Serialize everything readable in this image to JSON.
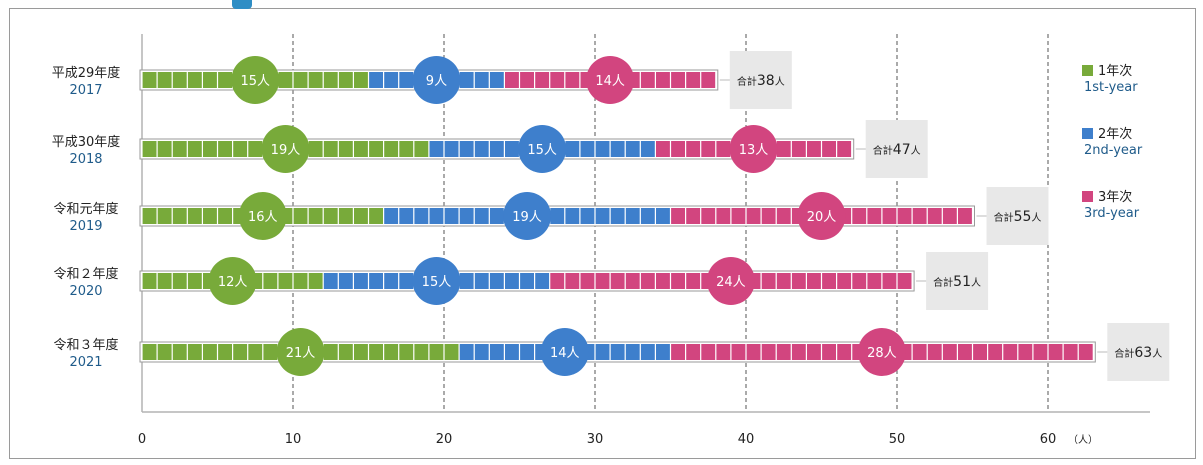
{
  "chart_data": {
    "type": "bar",
    "orientation": "horizontal",
    "stacked": true,
    "categories": [
      {
        "label": "平成29年度",
        "year": "2017"
      },
      {
        "label": "平成30年度",
        "year": "2018"
      },
      {
        "label": "令和元年度",
        "year": "2019"
      },
      {
        "label": "令和２年度",
        "year": "2020"
      },
      {
        "label": "令和３年度",
        "year": "2021"
      }
    ],
    "series": [
      {
        "name": "1年次",
        "name_en": "1st-year",
        "color": "#78aa3a",
        "values": [
          15,
          19,
          16,
          12,
          21
        ]
      },
      {
        "name": "2年次",
        "name_en": "2nd-year",
        "color": "#3e7fcc",
        "values": [
          9,
          15,
          19,
          15,
          14
        ]
      },
      {
        "name": "3年次",
        "name_en": "3rd-year",
        "color": "#d2457f",
        "values": [
          14,
          13,
          20,
          24,
          28
        ]
      }
    ],
    "value_suffix": "人",
    "totals": [
      38,
      47,
      55,
      51,
      63
    ],
    "total_prefix": "合計",
    "x_ticks": [
      0,
      10,
      20,
      30,
      40,
      50,
      60
    ],
    "x_unit": "（人）",
    "xlim": [
      0,
      60
    ],
    "grid": "vertical dashed",
    "legend_position": "right"
  }
}
